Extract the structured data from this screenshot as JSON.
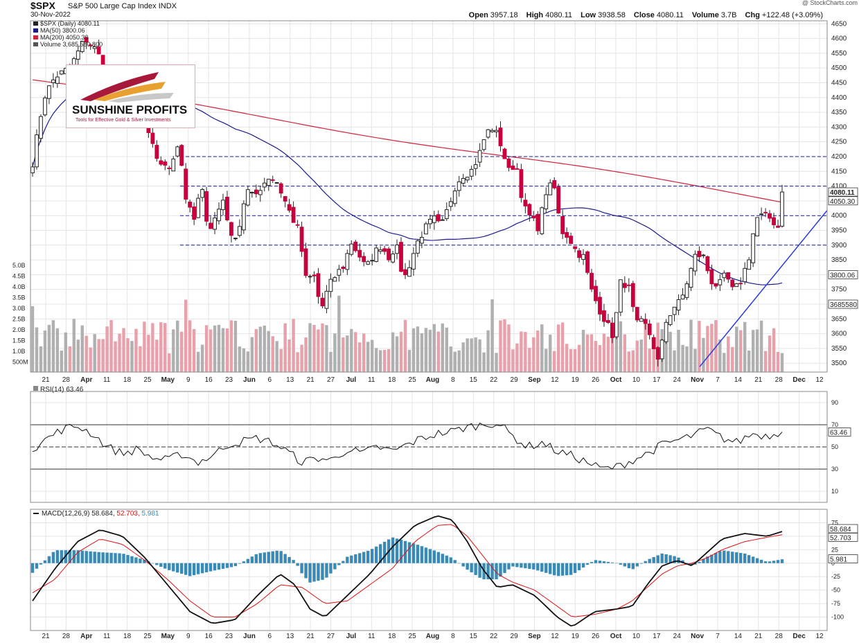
{
  "header": {
    "symbol": "$SPX",
    "name": "S&P 500 Large Cap Index",
    "exchange": "INDX",
    "date": "30-Nov-2022",
    "watermark": "@ StockCharts.com",
    "open_label": "Open",
    "open": "3957.18",
    "high_label": "High",
    "high": "4080.11",
    "low_label": "Low",
    "low": "3938.58",
    "close_label": "Close",
    "close": "4080.11",
    "volume_label": "Volume",
    "volume": "3.7B",
    "chg_label": "Chg",
    "chg": "+122.48 (+3.09%)"
  },
  "logo": {
    "title": "SUNSHINE PROFITS",
    "subtitle": "Tools for Effective Gold & Silver Investments"
  },
  "legend": {
    "price": "$SPX (Daily) 4080.11",
    "ma50": "MA(50) 3800.06",
    "ma200": "MA(200) 4050.30",
    "volume": "Volume 3,685,580,800",
    "rsi": "RSI(14) 63.46",
    "macd_label": "MACD(12,26,9)",
    "macd_vals": [
      "58.684",
      "52.703",
      "5.981"
    ]
  },
  "colors": {
    "up": "#ffffff",
    "down": "#c8003c",
    "ma50": "#1a1a8c",
    "ma200": "#d0223c",
    "volume_up": "#b0b0b0",
    "volume_down": "#e8a0aa",
    "trendline": "#2a3ad8",
    "level": "#1a1a8c",
    "histogram": "#3a8ab8",
    "signal": "#e01010"
  },
  "x_axis": {
    "labels": [
      "21",
      "28",
      "Apr",
      "11",
      "18",
      "25",
      "May",
      "9",
      "16",
      "23",
      "Jun",
      "6",
      "13",
      "21",
      "27",
      "Jul",
      "11",
      "18",
      "25",
      "Aug",
      "8",
      "15",
      "22",
      "29",
      "Sep",
      "12",
      "19",
      "26",
      "Oct",
      "10",
      "17",
      "24",
      "Nov",
      "7",
      "14",
      "21",
      "28",
      "Dec",
      "12"
    ],
    "bold": [
      "Apr",
      "May",
      "Jun",
      "Jul",
      "Aug",
      "Sep",
      "Oct",
      "Nov",
      "Dec"
    ]
  },
  "chart_data": [
    {
      "type": "candlestick",
      "title": "$SPX (Daily) 4080.11",
      "ylim": [
        3470,
        4660
      ],
      "y_ticks": [
        "4650",
        "4600",
        "4550",
        "4500",
        "4450",
        "4400",
        "4350",
        "4300",
        "4250",
        "4200",
        "4150",
        "4100",
        "4050",
        "4000",
        "3950",
        "3900",
        "3850",
        "3800",
        "3750",
        "3700",
        "3650",
        "3600",
        "3550",
        "3500"
      ],
      "volume_ticks": [
        "5.0B",
        "4.5B",
        "4.0B",
        "3.5B",
        "3.0B",
        "2.5B",
        "2.0B",
        "1.5B",
        "1.0B",
        "500M"
      ],
      "last_value_tags": {
        "close": "4080.11",
        "ma200": "4050.30",
        "ma50": "3800.06",
        "volume": "3685580"
      },
      "horizontal_levels": [
        4200,
        4100,
        4000,
        3900
      ],
      "trendline": [
        [
          3488,
          0.84
        ],
        [
          4150,
          1.04
        ]
      ],
      "price_anchors": [
        [
          0.0,
          4180
        ],
        [
          0.015,
          4400
        ],
        [
          0.03,
          4470
        ],
        [
          0.05,
          4500
        ],
        [
          0.07,
          4600
        ],
        [
          0.085,
          4560
        ],
        [
          0.1,
          4480
        ],
        [
          0.12,
          4450
        ],
        [
          0.135,
          4420
        ],
        [
          0.15,
          4300
        ],
        [
          0.165,
          4200
        ],
        [
          0.18,
          4150
        ],
        [
          0.195,
          4250
        ],
        [
          0.205,
          4050
        ],
        [
          0.215,
          3980
        ],
        [
          0.225,
          4100
        ],
        [
          0.235,
          3950
        ],
        [
          0.245,
          4000
        ],
        [
          0.255,
          4060
        ],
        [
          0.265,
          3920
        ],
        [
          0.275,
          3950
        ],
        [
          0.285,
          4090
        ],
        [
          0.295,
          4060
        ],
        [
          0.305,
          4100
        ],
        [
          0.315,
          4130
        ],
        [
          0.325,
          4120
        ],
        [
          0.335,
          4060
        ],
        [
          0.345,
          4000
        ],
        [
          0.355,
          3950
        ],
        [
          0.365,
          3780
        ],
        [
          0.375,
          3800
        ],
        [
          0.385,
          3680
        ],
        [
          0.395,
          3760
        ],
        [
          0.405,
          3800
        ],
        [
          0.415,
          3830
        ],
        [
          0.425,
          3910
        ],
        [
          0.435,
          3870
        ],
        [
          0.445,
          3820
        ],
        [
          0.455,
          3870
        ],
        [
          0.465,
          3900
        ],
        [
          0.475,
          3860
        ],
        [
          0.485,
          3900
        ],
        [
          0.495,
          3780
        ],
        [
          0.505,
          3850
        ],
        [
          0.515,
          3920
        ],
        [
          0.525,
          3960
        ],
        [
          0.535,
          3990
        ],
        [
          0.545,
          3960
        ],
        [
          0.555,
          4030
        ],
        [
          0.565,
          4110
        ],
        [
          0.575,
          4140
        ],
        [
          0.585,
          4150
        ],
        [
          0.595,
          4200
        ],
        [
          0.605,
          4280
        ],
        [
          0.615,
          4300
        ],
        [
          0.625,
          4240
        ],
        [
          0.635,
          4150
        ],
        [
          0.645,
          4180
        ],
        [
          0.655,
          4030
        ],
        [
          0.665,
          3990
        ],
        [
          0.675,
          3960
        ],
        [
          0.685,
          4080
        ],
        [
          0.695,
          4110
        ],
        [
          0.705,
          3950
        ],
        [
          0.715,
          3930
        ],
        [
          0.725,
          3880
        ],
        [
          0.735,
          3860
        ],
        [
          0.745,
          3750
        ],
        [
          0.755,
          3690
        ],
        [
          0.765,
          3640
        ],
        [
          0.775,
          3590
        ],
        [
          0.785,
          3780
        ],
        [
          0.795,
          3760
        ],
        [
          0.805,
          3630
        ],
        [
          0.815,
          3640
        ],
        [
          0.825,
          3590
        ],
        [
          0.835,
          3500
        ],
        [
          0.845,
          3640
        ],
        [
          0.855,
          3690
        ],
        [
          0.865,
          3710
        ],
        [
          0.875,
          3790
        ],
        [
          0.885,
          3870
        ],
        [
          0.895,
          3860
        ],
        [
          0.905,
          3780
        ],
        [
          0.915,
          3760
        ],
        [
          0.925,
          3800
        ],
        [
          0.935,
          3740
        ],
        [
          0.945,
          3780
        ],
        [
          0.955,
          3850
        ],
        [
          0.965,
          3990
        ],
        [
          0.975,
          4000
        ],
        [
          0.985,
          3990
        ],
        [
          0.995,
          3960
        ],
        [
          1.0,
          4080.11
        ]
      ]
    },
    {
      "type": "line",
      "title": "RSI(14) 63.46",
      "ylim": [
        0,
        100
      ],
      "y_ticks": [
        "90",
        "70",
        "50",
        "30",
        "10"
      ],
      "levels": [
        70,
        50,
        30
      ],
      "last_value": "63.46",
      "series": [
        {
          "name": "RSI(14)",
          "anchors": [
            [
              0,
              48
            ],
            [
              0.02,
              58
            ],
            [
              0.04,
              66
            ],
            [
              0.06,
              69
            ],
            [
              0.08,
              62
            ],
            [
              0.1,
              50
            ],
            [
              0.12,
              44
            ],
            [
              0.14,
              48
            ],
            [
              0.16,
              40
            ],
            [
              0.18,
              38
            ],
            [
              0.2,
              44
            ],
            [
              0.22,
              36
            ],
            [
              0.24,
              42
            ],
            [
              0.26,
              52
            ],
            [
              0.28,
              55
            ],
            [
              0.3,
              58
            ],
            [
              0.32,
              54
            ],
            [
              0.34,
              46
            ],
            [
              0.36,
              36
            ],
            [
              0.38,
              40
            ],
            [
              0.4,
              38
            ],
            [
              0.42,
              48
            ],
            [
              0.44,
              44
            ],
            [
              0.46,
              50
            ],
            [
              0.48,
              46
            ],
            [
              0.5,
              52
            ],
            [
              0.52,
              58
            ],
            [
              0.54,
              62
            ],
            [
              0.56,
              64
            ],
            [
              0.58,
              68
            ],
            [
              0.6,
              70
            ],
            [
              0.62,
              72
            ],
            [
              0.64,
              60
            ],
            [
              0.66,
              50
            ],
            [
              0.68,
              54
            ],
            [
              0.7,
              46
            ],
            [
              0.72,
              42
            ],
            [
              0.74,
              36
            ],
            [
              0.76,
              30
            ],
            [
              0.78,
              32
            ],
            [
              0.8,
              38
            ],
            [
              0.82,
              44
            ],
            [
              0.84,
              52
            ],
            [
              0.86,
              56
            ],
            [
              0.88,
              60
            ],
            [
              0.9,
              66
            ],
            [
              0.92,
              58
            ],
            [
              0.94,
              54
            ],
            [
              0.96,
              62
            ],
            [
              0.98,
              60
            ],
            [
              1.0,
              63.46
            ]
          ]
        }
      ]
    },
    {
      "type": "line",
      "title": "MACD(12,26,9) 58.684, 52.703, 5.981",
      "ylim": [
        -125,
        100
      ],
      "y_ticks": [
        "75",
        "50",
        "25",
        "0",
        "-25",
        "-50",
        "-75",
        "-100"
      ],
      "last_values": {
        "macd": "58.684",
        "signal": "52.703",
        "histogram": "5.981"
      },
      "series": [
        {
          "name": "MACD",
          "anchors": [
            [
              0,
              -70
            ],
            [
              0.03,
              -10
            ],
            [
              0.06,
              40
            ],
            [
              0.09,
              62
            ],
            [
              0.12,
              50
            ],
            [
              0.15,
              10
            ],
            [
              0.18,
              -40
            ],
            [
              0.21,
              -90
            ],
            [
              0.24,
              -112
            ],
            [
              0.27,
              -105
            ],
            [
              0.3,
              -60
            ],
            [
              0.33,
              -20
            ],
            [
              0.35,
              -40
            ],
            [
              0.37,
              -85
            ],
            [
              0.39,
              -100
            ],
            [
              0.42,
              -60
            ],
            [
              0.45,
              -20
            ],
            [
              0.48,
              30
            ],
            [
              0.51,
              70
            ],
            [
              0.54,
              88
            ],
            [
              0.56,
              80
            ],
            [
              0.58,
              40
            ],
            [
              0.6,
              -10
            ],
            [
              0.62,
              -45
            ],
            [
              0.64,
              -40
            ],
            [
              0.67,
              -60
            ],
            [
              0.7,
              -100
            ],
            [
              0.72,
              -118
            ],
            [
              0.75,
              -90
            ],
            [
              0.78,
              -85
            ],
            [
              0.8,
              -80
            ],
            [
              0.82,
              -40
            ],
            [
              0.84,
              -5
            ],
            [
              0.86,
              5
            ],
            [
              0.88,
              -5
            ],
            [
              0.9,
              20
            ],
            [
              0.92,
              45
            ],
            [
              0.95,
              55
            ],
            [
              0.98,
              50
            ],
            [
              1.0,
              58.684
            ]
          ]
        },
        {
          "name": "Signal",
          "anchors": [
            [
              0,
              -55
            ],
            [
              0.03,
              -30
            ],
            [
              0.06,
              20
            ],
            [
              0.09,
              45
            ],
            [
              0.12,
              35
            ],
            [
              0.15,
              5
            ],
            [
              0.18,
              -30
            ],
            [
              0.21,
              -70
            ],
            [
              0.24,
              -100
            ],
            [
              0.27,
              -100
            ],
            [
              0.3,
              -75
            ],
            [
              0.33,
              -40
            ],
            [
              0.36,
              -45
            ],
            [
              0.39,
              -75
            ],
            [
              0.42,
              -70
            ],
            [
              0.45,
              -40
            ],
            [
              0.48,
              -10
            ],
            [
              0.51,
              40
            ],
            [
              0.54,
              70
            ],
            [
              0.56,
              72
            ],
            [
              0.58,
              50
            ],
            [
              0.6,
              15
            ],
            [
              0.62,
              -20
            ],
            [
              0.64,
              -35
            ],
            [
              0.67,
              -50
            ],
            [
              0.7,
              -80
            ],
            [
              0.72,
              -100
            ],
            [
              0.75,
              -95
            ],
            [
              0.78,
              -85
            ],
            [
              0.8,
              -70
            ],
            [
              0.82,
              -45
            ],
            [
              0.84,
              -20
            ],
            [
              0.86,
              -5
            ],
            [
              0.88,
              0
            ],
            [
              0.9,
              10
            ],
            [
              0.92,
              25
            ],
            [
              0.95,
              40
            ],
            [
              0.98,
              48
            ],
            [
              1.0,
              52.703
            ]
          ]
        }
      ]
    }
  ]
}
